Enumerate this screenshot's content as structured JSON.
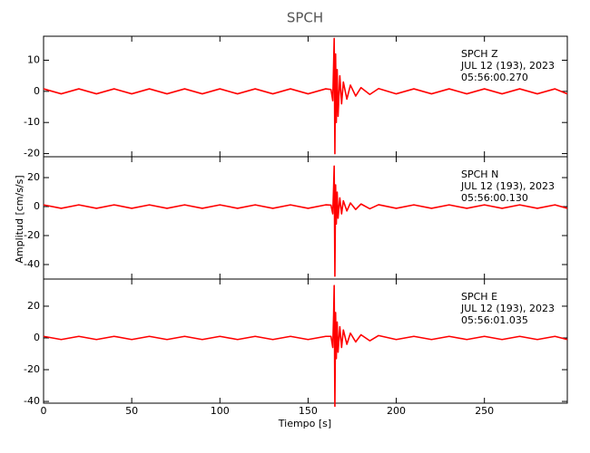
{
  "figure": {
    "title": "SPCH",
    "xlabel": "Tiempo [s]",
    "ylabel": "Amplitud [cm/s/s]"
  },
  "chart_data": [
    {
      "type": "line",
      "annotation": [
        "SPCH   Z",
        "JUL 12 (193), 2023",
        "05:56:00.270"
      ],
      "color": "#ff0000",
      "xlim": [
        0,
        297
      ],
      "xticks": [
        0,
        50,
        100,
        150,
        200,
        250
      ],
      "ylim": [
        -21,
        17.7
      ],
      "yticks": [
        -20,
        -10,
        0,
        10
      ],
      "x": [
        0,
        10,
        20,
        30,
        40,
        50,
        60,
        70,
        80,
        90,
        100,
        110,
        120,
        130,
        140,
        150,
        160,
        163,
        164,
        164.5,
        164.8,
        165.2,
        165.6,
        166,
        166.5,
        167,
        168,
        169,
        170,
        172,
        174,
        177,
        180,
        185,
        190,
        200,
        210,
        220,
        230,
        240,
        250,
        260,
        270,
        280,
        290,
        297
      ],
      "values": [
        0.8,
        -0.8,
        0.8,
        -0.8,
        0.8,
        -0.8,
        0.8,
        -0.8,
        0.8,
        -0.8,
        0.8,
        -0.8,
        0.8,
        -0.8,
        0.8,
        -0.8,
        0.8,
        0.6,
        -3,
        9,
        17,
        -20,
        12,
        -10,
        7,
        -8,
        5,
        -4,
        3,
        -2.5,
        2,
        -1.5,
        1.2,
        -1,
        0.9,
        -0.8,
        0.8,
        -0.8,
        0.8,
        -0.8,
        0.8,
        -0.8,
        0.8,
        -0.8,
        0.8,
        -0.8
      ]
    },
    {
      "type": "line",
      "annotation": [
        "SPCH   N",
        "JUL 12 (193), 2023",
        "05:56:00.130"
      ],
      "color": "#ff0000",
      "xlim": [
        0,
        297
      ],
      "xticks": [
        0,
        50,
        100,
        150,
        200,
        250
      ],
      "ylim": [
        -50,
        34.4
      ],
      "yticks": [
        -40,
        -20,
        0,
        20
      ],
      "x": [
        0,
        10,
        20,
        30,
        40,
        50,
        60,
        70,
        80,
        90,
        100,
        110,
        120,
        130,
        140,
        150,
        160,
        163,
        164,
        164.5,
        164.8,
        165.2,
        165.6,
        166,
        166.5,
        167,
        168,
        169,
        170,
        172,
        174,
        177,
        180,
        185,
        190,
        200,
        210,
        220,
        230,
        240,
        250,
        260,
        270,
        280,
        290,
        297
      ],
      "values": [
        1.2,
        -1.2,
        1.2,
        -1.2,
        1.2,
        -1.2,
        1.2,
        -1.2,
        1.2,
        -1.2,
        1.2,
        -1.2,
        1.2,
        -1.2,
        1.2,
        -1.2,
        1.2,
        1,
        -5,
        14,
        28,
        -48,
        15,
        -12,
        10,
        -8,
        6,
        -5,
        4,
        -3,
        2.5,
        -2,
        1.8,
        -1.5,
        1.3,
        -1.2,
        1.2,
        -1.2,
        1.2,
        -1.2,
        1.2,
        -1.2,
        1.2,
        -1.2,
        1.2,
        -1.2
      ]
    },
    {
      "type": "line",
      "annotation": [
        "SPCH   E",
        "JUL 12 (193), 2023",
        "05:56:01.035"
      ],
      "color": "#ff0000",
      "xlim": [
        0,
        297
      ],
      "xticks": [
        0,
        50,
        100,
        150,
        200,
        250
      ],
      "ylim": [
        -41.1,
        37.1
      ],
      "yticks": [
        -40,
        -20,
        0,
        20
      ],
      "x": [
        0,
        10,
        20,
        30,
        40,
        50,
        60,
        70,
        80,
        90,
        100,
        110,
        120,
        130,
        140,
        150,
        160,
        163,
        164,
        164.5,
        164.8,
        165.2,
        165.6,
        166,
        166.5,
        167,
        168,
        169,
        170,
        172,
        174,
        177,
        180,
        185,
        190,
        200,
        210,
        220,
        230,
        240,
        250,
        260,
        270,
        280,
        290,
        297
      ],
      "values": [
        1,
        -1,
        1,
        -1,
        1,
        -1,
        1,
        -1,
        1,
        -1,
        1,
        -1,
        1,
        -1,
        1,
        -1,
        1,
        1,
        -6,
        15,
        33,
        -43,
        16,
        -13,
        10,
        -9,
        7,
        -6,
        5,
        -4,
        3,
        -2.5,
        2,
        -1.8,
        1.5,
        -1,
        1,
        -1,
        1,
        -1,
        1,
        -1,
        1,
        -1,
        1,
        -1
      ]
    }
  ]
}
